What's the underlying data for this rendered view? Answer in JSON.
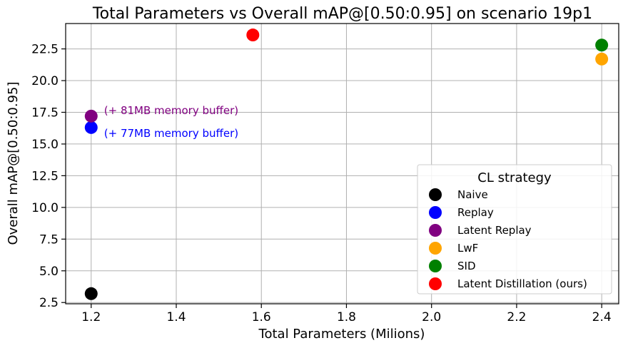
{
  "chart_data": {
    "type": "scatter",
    "title": "Total Parameters vs Overall mAP@[0.50:0.95] on scenario 19p1",
    "xlabel": "Total Parameters (Milions)",
    "ylabel": "Overall mAP@[0.50:0.95]",
    "xlim": [
      1.14,
      2.44
    ],
    "ylim": [
      2.4,
      24.5
    ],
    "xticks": [
      "1.2",
      "1.4",
      "1.6",
      "1.8",
      "2.0",
      "2.2",
      "2.4"
    ],
    "yticks": [
      "2.5",
      "5.0",
      "7.5",
      "10.0",
      "12.5",
      "15.0",
      "17.5",
      "20.0",
      "22.5"
    ],
    "grid": true,
    "legend": {
      "title": "CL strategy",
      "placement": "lower right"
    },
    "series": [
      {
        "name": "Naive",
        "color": "#000000",
        "x": [
          1.2
        ],
        "y": [
          3.2
        ]
      },
      {
        "name": "Replay",
        "color": "#0000ff",
        "x": [
          1.2
        ],
        "y": [
          16.3
        ]
      },
      {
        "name": "Latent Replay",
        "color": "#800080",
        "x": [
          1.2
        ],
        "y": [
          17.2
        ]
      },
      {
        "name": "LwF",
        "color": "#ffa500",
        "x": [
          2.4
        ],
        "y": [
          21.7
        ]
      },
      {
        "name": "SID",
        "color": "#008000",
        "x": [
          2.4
        ],
        "y": [
          22.8
        ]
      },
      {
        "name": "Latent Distillation (ours)",
        "color": "#ff0000",
        "x": [
          1.58
        ],
        "y": [
          23.6
        ]
      }
    ],
    "annotations": [
      {
        "text": "(+ 81MB memory buffer)",
        "color": "#800080",
        "x": 1.2,
        "y": 17.2,
        "placement": "right"
      },
      {
        "text": "(+ 77MB memory buffer)",
        "color": "#0000ff",
        "x": 1.2,
        "y": 16.3,
        "placement": "right-below"
      }
    ]
  }
}
